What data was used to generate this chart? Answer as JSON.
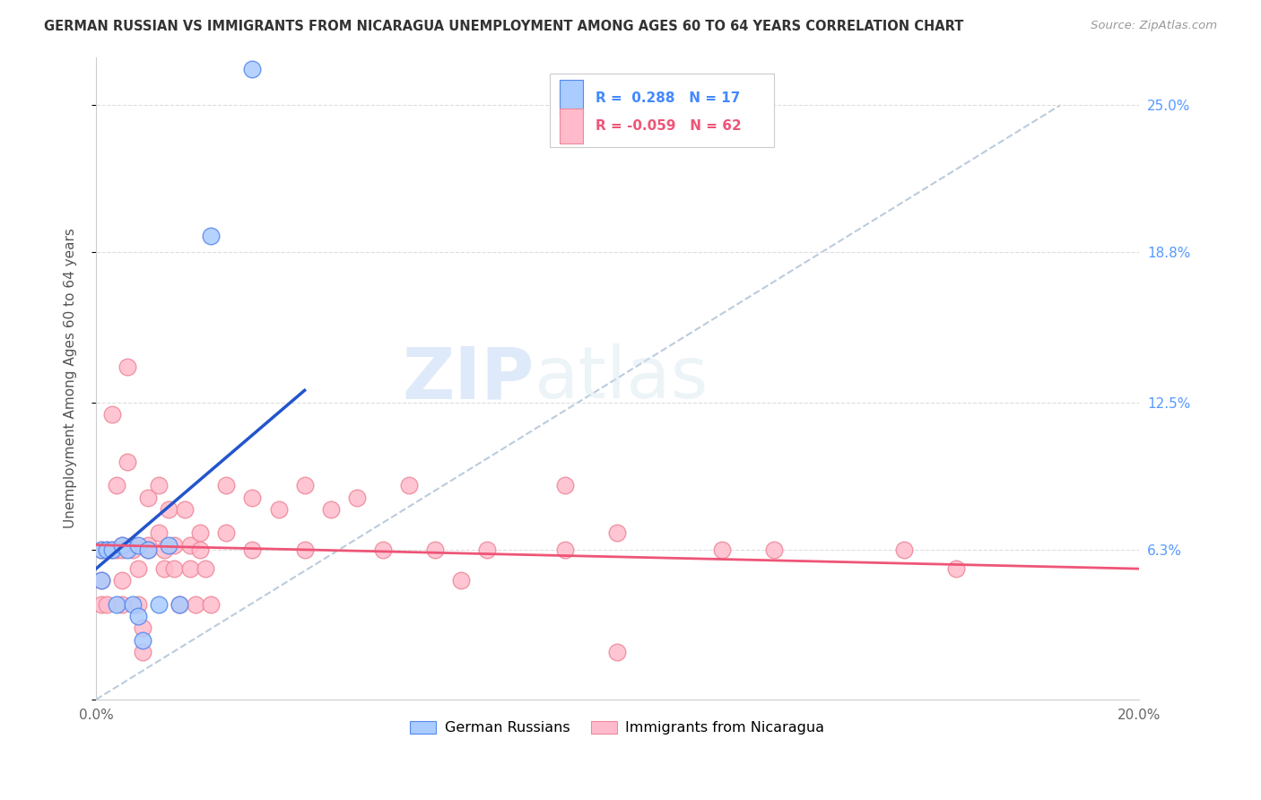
{
  "title": "GERMAN RUSSIAN VS IMMIGRANTS FROM NICARAGUA UNEMPLOYMENT AMONG AGES 60 TO 64 YEARS CORRELATION CHART",
  "source": "Source: ZipAtlas.com",
  "ylabel": "Unemployment Among Ages 60 to 64 years",
  "xlim": [
    0,
    0.2
  ],
  "ylim": [
    0.0,
    0.27
  ],
  "xticks": [
    0.0,
    0.05,
    0.1,
    0.15,
    0.2
  ],
  "xticklabels": [
    "0.0%",
    "",
    "",
    "",
    "20.0%"
  ],
  "ytick_positions": [
    0.0,
    0.063,
    0.125,
    0.188,
    0.25
  ],
  "ytick_labels_right": [
    "",
    "6.3%",
    "12.5%",
    "18.8%",
    "25.0%"
  ],
  "R_blue": 0.288,
  "N_blue": 17,
  "R_pink": -0.059,
  "N_pink": 62,
  "blue_color": "#aaccff",
  "blue_edge_color": "#5588ee",
  "pink_color": "#ffbbcc",
  "pink_edge_color": "#ee8899",
  "blue_line_color": "#2255cc",
  "pink_line_color": "#ee5577",
  "diag_color": "#bbccdd",
  "grid_color": "#dddddd",
  "watermark_color": "#ddeeff",
  "blue_points_x": [
    0.001,
    0.001,
    0.002,
    0.003,
    0.004,
    0.005,
    0.006,
    0.007,
    0.008,
    0.008,
    0.009,
    0.01,
    0.012,
    0.014,
    0.016,
    0.022,
    0.03
  ],
  "blue_points_y": [
    0.063,
    0.05,
    0.063,
    0.063,
    0.04,
    0.065,
    0.063,
    0.04,
    0.065,
    0.035,
    0.025,
    0.063,
    0.04,
    0.065,
    0.04,
    0.195,
    0.265
  ],
  "pink_points_x": [
    0.001,
    0.001,
    0.001,
    0.002,
    0.002,
    0.003,
    0.003,
    0.004,
    0.004,
    0.005,
    0.005,
    0.005,
    0.005,
    0.006,
    0.006,
    0.007,
    0.007,
    0.008,
    0.008,
    0.009,
    0.009,
    0.01,
    0.01,
    0.01,
    0.012,
    0.012,
    0.013,
    0.013,
    0.014,
    0.015,
    0.015,
    0.016,
    0.017,
    0.018,
    0.018,
    0.019,
    0.02,
    0.02,
    0.021,
    0.022,
    0.025,
    0.025,
    0.03,
    0.03,
    0.035,
    0.04,
    0.04,
    0.045,
    0.05,
    0.055,
    0.06,
    0.065,
    0.07,
    0.075,
    0.09,
    0.09,
    0.1,
    0.1,
    0.12,
    0.13,
    0.155,
    0.165
  ],
  "pink_points_y": [
    0.063,
    0.05,
    0.04,
    0.063,
    0.04,
    0.12,
    0.063,
    0.09,
    0.063,
    0.065,
    0.063,
    0.05,
    0.04,
    0.14,
    0.1,
    0.065,
    0.063,
    0.055,
    0.04,
    0.03,
    0.02,
    0.085,
    0.065,
    0.063,
    0.09,
    0.07,
    0.063,
    0.055,
    0.08,
    0.065,
    0.055,
    0.04,
    0.08,
    0.065,
    0.055,
    0.04,
    0.07,
    0.063,
    0.055,
    0.04,
    0.09,
    0.07,
    0.085,
    0.063,
    0.08,
    0.09,
    0.063,
    0.08,
    0.085,
    0.063,
    0.09,
    0.063,
    0.05,
    0.063,
    0.09,
    0.063,
    0.07,
    0.02,
    0.063,
    0.063,
    0.063,
    0.055
  ],
  "blue_trendline_x": [
    0.0,
    0.04
  ],
  "blue_trendline_y": [
    0.055,
    0.13
  ],
  "pink_trendline_x": [
    0.0,
    0.2
  ],
  "pink_trendline_y": [
    0.065,
    0.055
  ],
  "diag_line_x": [
    0.0,
    0.185
  ],
  "diag_line_y": [
    0.0,
    0.25
  ]
}
